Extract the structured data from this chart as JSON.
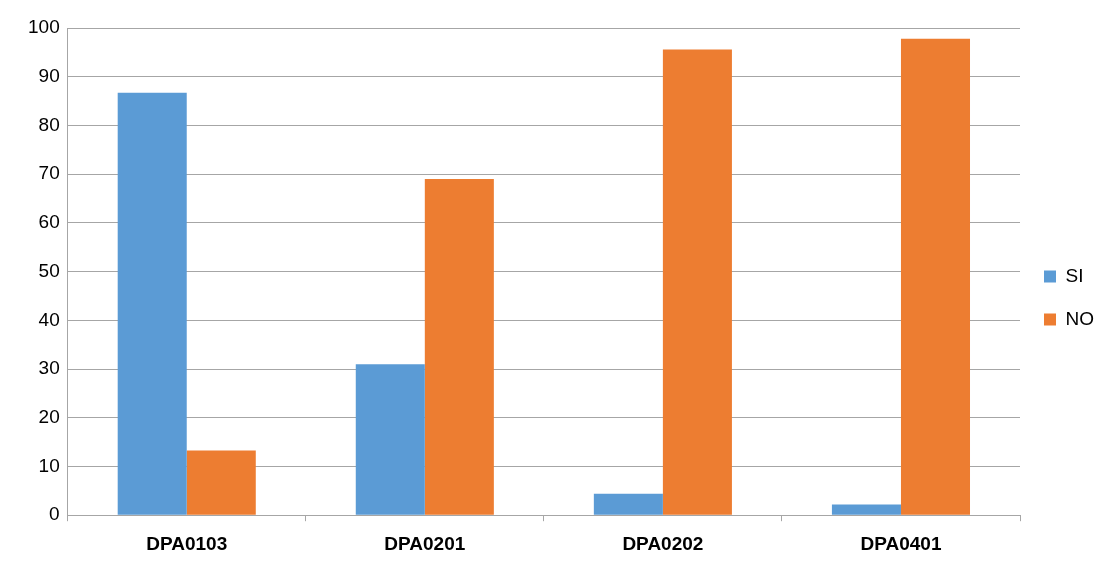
{
  "chart_data": {
    "type": "bar",
    "categories": [
      "DPA0103",
      "DPA0201",
      "DPA0202",
      "DPA0401"
    ],
    "series": [
      {
        "name": "SI",
        "color": "#5b9bd5",
        "values": [
          86.7,
          31,
          4.4,
          2.2
        ]
      },
      {
        "name": "NO",
        "color": "#ed7d31",
        "values": [
          13.3,
          69,
          95.6,
          97.8
        ]
      }
    ],
    "ylim": [
      0,
      100
    ],
    "yticks": [
      0,
      10,
      20,
      30,
      40,
      50,
      60,
      70,
      80,
      90,
      100
    ],
    "grid": "y",
    "legend": "right"
  }
}
